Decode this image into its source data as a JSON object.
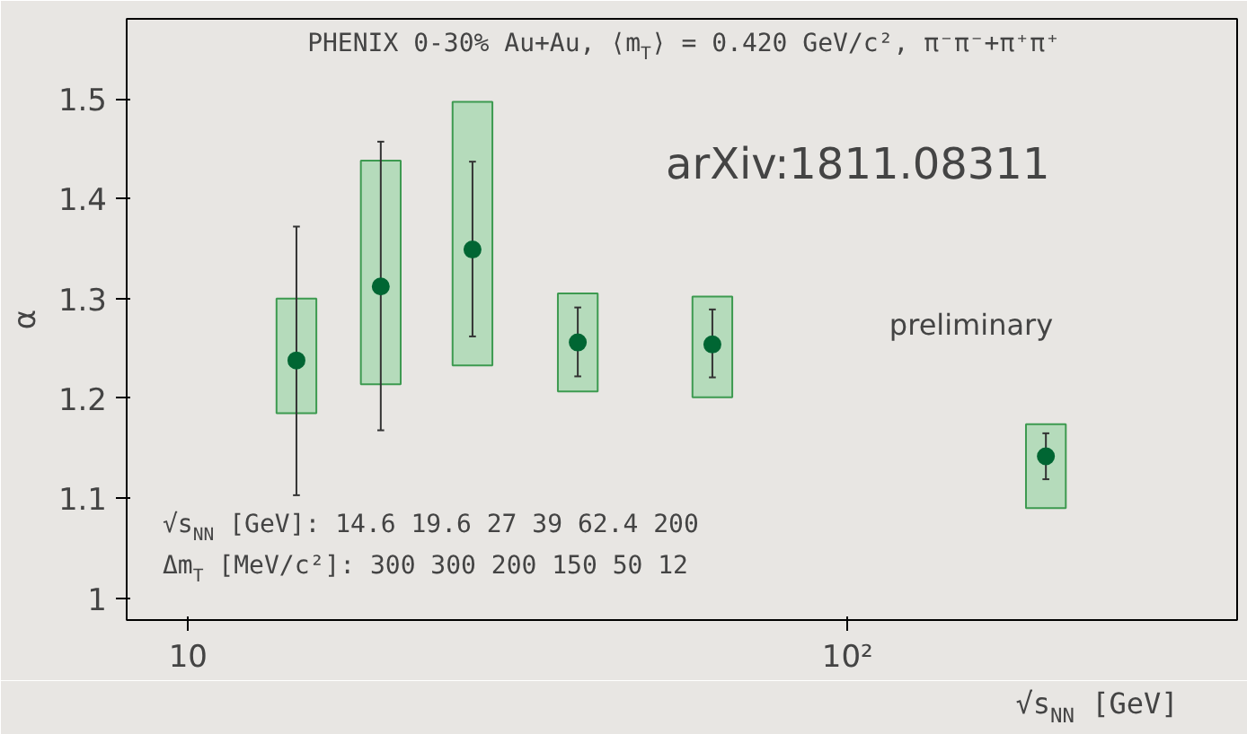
{
  "chart_data": {
    "type": "scatter",
    "title": "PHENIX 0-30% Au+Au, ⟨m$_{T}$⟩ = 0.420 GeV/c², π⁻π⁻+π⁺π⁺",
    "xlabel": "√s$_{NN}$ [GeV]",
    "ylabel": "α",
    "log": "x",
    "xlim": [
      8.07,
      390
    ],
    "ylim": [
      0.978,
      1.58
    ],
    "xticks": [
      {
        "value": 10,
        "label": "10"
      },
      {
        "value": 100,
        "label": "10²"
      }
    ],
    "yticks": [
      1,
      1.1,
      1.2,
      1.3,
      1.4,
      1.5
    ],
    "grid": false,
    "annotations": [
      "arXiv:1811.08311",
      "preliminary",
      "√s$_{NN}$ [GeV]:   14.6   19.6   27   39   62.4   200",
      "Δm$_{T}$ [MeV/c²]:   300   300   200   150   50   12"
    ],
    "series": [
      {
        "type": "bar",
        "color": "#a8d8b0",
        "x": [
          14.6,
          19.6,
          27,
          39,
          62.4,
          200
        ],
        "base": [
          1.185,
          1.214,
          1.233,
          1.207,
          1.201,
          1.09
        ],
        "values": [
          0.115,
          0.224,
          0.264,
          0.098,
          0.101,
          0.084
        ]
      },
      {
        "type": "scatter",
        "color": "#006633",
        "marker": "circle",
        "x": [
          14.6,
          19.6,
          27,
          39,
          62.4,
          200
        ],
        "values": [
          1.238,
          1.312,
          1.349,
          1.256,
          1.254,
          1.142
        ],
        "errors": [
          [
            1.103,
            1.372
          ],
          [
            1.168,
            1.457
          ],
          [
            1.262,
            1.437
          ],
          [
            1.222,
            1.291
          ],
          [
            1.221,
            1.289
          ],
          [
            1.119,
            1.165
          ]
        ]
      }
    ]
  }
}
